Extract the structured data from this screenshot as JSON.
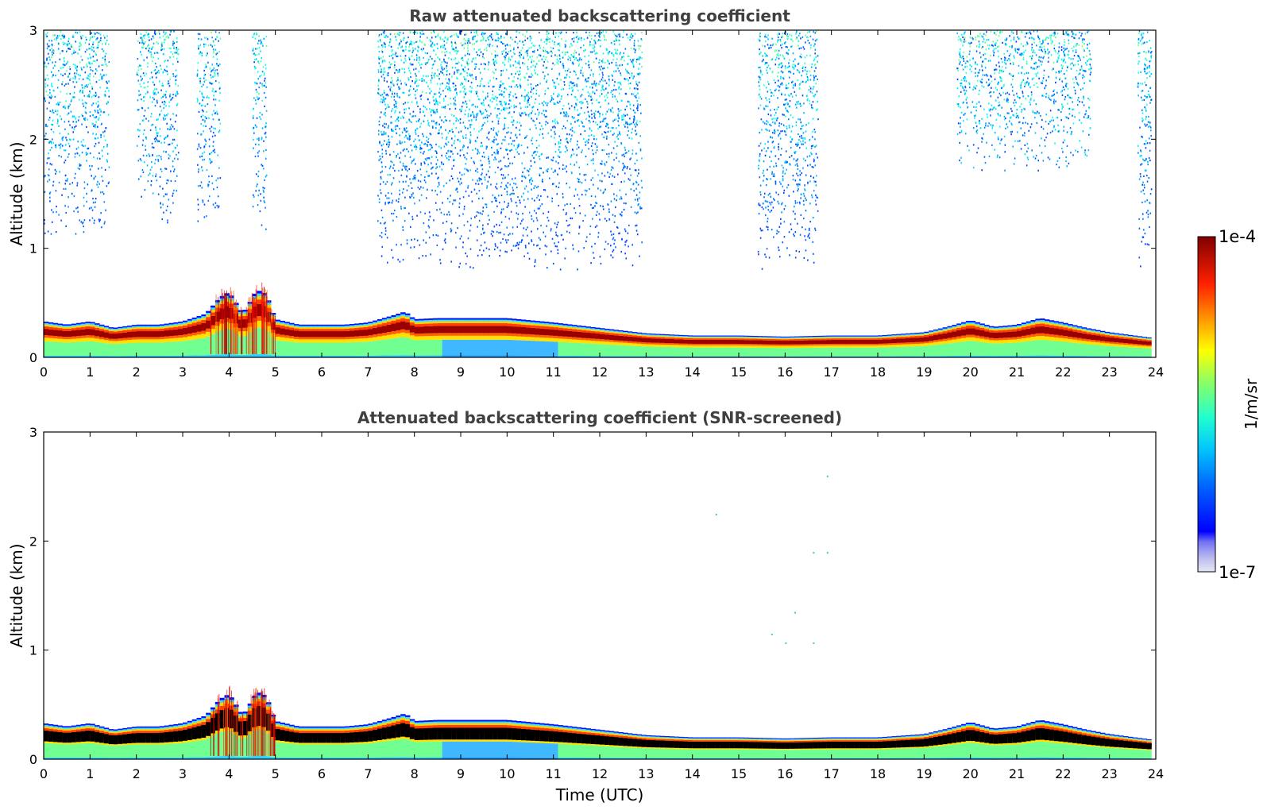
{
  "chart_data": [
    {
      "type": "heatmap",
      "title": "Raw attenuated backscattering coefficient",
      "xlabel": "",
      "ylabel": "Altitude (km)",
      "xlim": [
        0,
        24
      ],
      "ylim": [
        0,
        3
      ],
      "xticks": [
        "0",
        "1",
        "2",
        "3",
        "4",
        "5",
        "6",
        "7",
        "8",
        "9",
        "10",
        "11",
        "12",
        "13",
        "14",
        "15",
        "16",
        "17",
        "18",
        "19",
        "20",
        "21",
        "22",
        "23",
        "24"
      ],
      "yticks": [
        "0",
        "1",
        "2",
        "3"
      ],
      "screened": false,
      "boundary_layer_top_km": [
        [
          0.0,
          0.33
        ],
        [
          0.5,
          0.3
        ],
        [
          1.0,
          0.33
        ],
        [
          1.5,
          0.27
        ],
        [
          2.0,
          0.3
        ],
        [
          2.5,
          0.3
        ],
        [
          3.0,
          0.33
        ],
        [
          3.5,
          0.4
        ],
        [
          3.8,
          0.55
        ],
        [
          4.0,
          0.6
        ],
        [
          4.3,
          0.4
        ],
        [
          4.6,
          0.62
        ],
        [
          4.8,
          0.58
        ],
        [
          5.0,
          0.35
        ],
        [
          5.5,
          0.3
        ],
        [
          6.0,
          0.3
        ],
        [
          6.5,
          0.3
        ],
        [
          7.0,
          0.32
        ],
        [
          7.5,
          0.38
        ],
        [
          7.8,
          0.42
        ],
        [
          8.0,
          0.35
        ],
        [
          8.5,
          0.36
        ],
        [
          9.0,
          0.36
        ],
        [
          10.0,
          0.36
        ],
        [
          11.0,
          0.32
        ],
        [
          12.0,
          0.27
        ],
        [
          13.0,
          0.22
        ],
        [
          14.0,
          0.2
        ],
        [
          15.0,
          0.2
        ],
        [
          16.0,
          0.19
        ],
        [
          17.0,
          0.2
        ],
        [
          18.0,
          0.2
        ],
        [
          19.0,
          0.23
        ],
        [
          19.5,
          0.28
        ],
        [
          20.0,
          0.34
        ],
        [
          20.5,
          0.28
        ],
        [
          21.0,
          0.3
        ],
        [
          21.5,
          0.36
        ],
        [
          22.0,
          0.32
        ],
        [
          22.5,
          0.27
        ],
        [
          23.0,
          0.23
        ],
        [
          23.9,
          0.18
        ]
      ],
      "sparse_signal_zones": [
        {
          "x": [
            0.0,
            1.4
          ],
          "y": [
            1.1,
            3.0
          ]
        },
        {
          "x": [
            2.0,
            2.9
          ],
          "y": [
            1.2,
            3.0
          ]
        },
        {
          "x": [
            3.3,
            3.8
          ],
          "y": [
            1.2,
            3.0
          ]
        },
        {
          "x": [
            4.5,
            4.8
          ],
          "y": [
            1.1,
            3.0
          ]
        },
        {
          "x": [
            7.2,
            12.9
          ],
          "y": [
            0.8,
            3.0
          ]
        },
        {
          "x": [
            15.4,
            16.7
          ],
          "y": [
            0.8,
            3.0
          ]
        },
        {
          "x": [
            19.7,
            22.6
          ],
          "y": [
            1.7,
            3.0
          ]
        },
        {
          "x": [
            23.6,
            23.9
          ],
          "y": [
            0.7,
            3.0
          ]
        }
      ]
    },
    {
      "type": "heatmap",
      "title": "Attenuated backscattering coefficient (SNR-screened)",
      "xlabel": "Time (UTC)",
      "ylabel": "Altitude (km)",
      "xlim": [
        0,
        24
      ],
      "ylim": [
        0,
        3
      ],
      "xticks": [
        "0",
        "1",
        "2",
        "3",
        "4",
        "5",
        "6",
        "7",
        "8",
        "9",
        "10",
        "11",
        "12",
        "13",
        "14",
        "15",
        "16",
        "17",
        "18",
        "19",
        "20",
        "21",
        "22",
        "23",
        "24"
      ],
      "yticks": [
        "0",
        "1",
        "2",
        "3"
      ],
      "screened": true,
      "isolated_points": [
        [
          14.5,
          2.25
        ],
        [
          16.9,
          2.6
        ],
        [
          16.6,
          1.9
        ],
        [
          16.9,
          1.9
        ],
        [
          16.2,
          1.35
        ],
        [
          15.7,
          1.15
        ],
        [
          16.0,
          1.07
        ],
        [
          16.6,
          1.07
        ]
      ]
    }
  ],
  "colorbar": {
    "label": "1/m/sr",
    "min_label": "1e-7",
    "max_label": "1e-4",
    "colormap": "jet",
    "low_end_colors": [
      "#e6e6f5",
      "#c8c8f0",
      "#aaaaf0",
      "#8c8cf0"
    ]
  }
}
